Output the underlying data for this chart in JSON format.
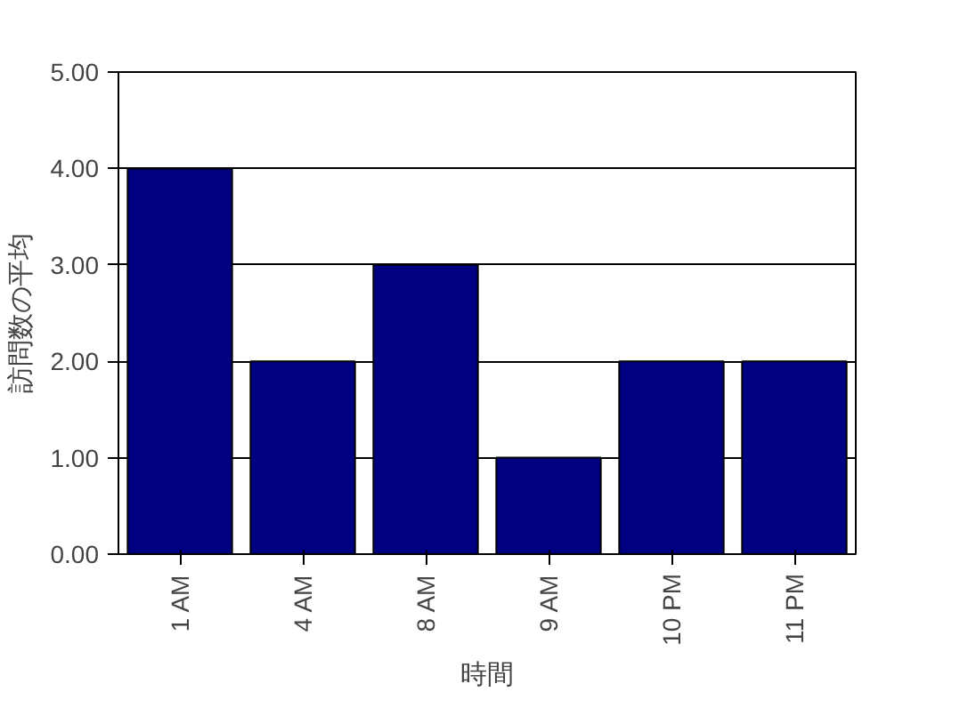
{
  "chart_data": {
    "type": "bar",
    "categories": [
      "1 AM",
      "4 AM",
      "8 AM",
      "9 AM",
      "10 PM",
      "11 PM"
    ],
    "values": [
      4,
      2,
      3,
      1,
      2,
      2
    ],
    "color": "#000080",
    "xlabel": "時間",
    "ylabel": "訪問数の平均",
    "ylim": [
      0,
      5
    ],
    "yticks": [
      {
        "value": 0,
        "label": "0.00"
      },
      {
        "value": 1,
        "label": "1.00"
      },
      {
        "value": 2,
        "label": "2.00"
      },
      {
        "value": 3,
        "label": "3.00"
      },
      {
        "value": 4,
        "label": "4.00"
      },
      {
        "value": 5,
        "label": "5.00"
      }
    ],
    "grid": "y"
  }
}
